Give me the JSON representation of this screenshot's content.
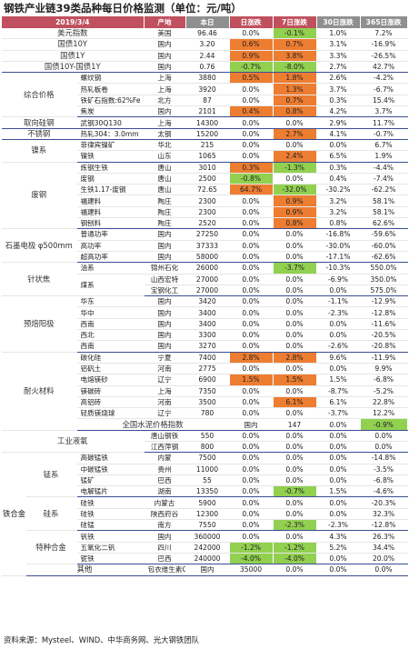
{
  "title": "钢铁产业链39类品种每日价格监测（单位：元/吨）",
  "header": {
    "date": "2019/3/4",
    "region": "产地",
    "price": "本日",
    "d1": "日涨跌",
    "d7": "7日涨跌",
    "d30": "30日涨跌",
    "d365": "365日涨跌"
  },
  "highlight_colors": {
    "orange": "#ed7d31",
    "green": "#92d050",
    "header": "#c0505e"
  },
  "rows": [
    {
      "c1": "美元指数",
      "c2": "",
      "c3": "美国",
      "price": "96.46",
      "d1": "0.0%",
      "d7": "-0.1%",
      "d30": "1.0%",
      "d365": "7.2%",
      "h7": "green"
    },
    {
      "c1": "国债10Y",
      "c2": "",
      "c3": "国内",
      "price": "3.20",
      "d1": "0.6%",
      "d7": "0.7%",
      "d30": "3.1%",
      "d365": "-16.9%",
      "h1": "orange",
      "h7": "orange"
    },
    {
      "c1": "国债1Y",
      "c2": "",
      "c3": "国内",
      "price": "2.44",
      "d1": "0.9%",
      "d7": "3.8%",
      "d30": "3.3%",
      "d365": "-26.5%",
      "h1": "orange",
      "h7": "orange"
    },
    {
      "c1": "国债10Y-国债1Y",
      "c2": "",
      "c3": "国内",
      "price": "0.76",
      "d1": "-0.7%",
      "d7": "-8.0%",
      "d30": "2.7%",
      "d365": "42.7%",
      "h1": "green",
      "h7": "green",
      "end": true
    },
    {
      "c1": "综合价格",
      "c2": "螺纹钢",
      "c3": "上海",
      "price": "3880",
      "d1": "0.5%",
      "d7": "1.8%",
      "d30": "2.6%",
      "d365": "-4.2%",
      "h1": "orange",
      "h7": "orange",
      "span": 4
    },
    {
      "c2": "热轧板卷",
      "c3": "上海",
      "price": "3920",
      "d1": "0.0%",
      "d7": "1.3%",
      "d30": "3.7%",
      "d365": "-6.7%",
      "h7": "orange"
    },
    {
      "c2": "铁矿石指数:62%Fe",
      "c3": "北方",
      "price": "87",
      "d1": "0.0%",
      "d7": "0.7%",
      "d30": "0.3%",
      "d365": "15.4%",
      "h7": "orange"
    },
    {
      "c2": "焦炭",
      "c3": "国内",
      "price": "2101",
      "d1": "0.4%",
      "d7": "0.8%",
      "d30": "4.2%",
      "d365": "3.7%",
      "h1": "orange",
      "h7": "orange",
      "end": true
    },
    {
      "c1": "取向硅钢",
      "c2": "武钢30Q130",
      "c3": "上海",
      "price": "14300",
      "d1": "0.0%",
      "d7": "0.0%",
      "d30": "2.9%",
      "d365": "11.7%",
      "end": true
    },
    {
      "c1": "不锈钢",
      "c2": "热轧304：3.0mm",
      "c3": "太钢",
      "price": "15200",
      "d1": "0.0%",
      "d7": "2.7%",
      "d30": "4.1%",
      "d365": "-0.7%",
      "h7": "orange",
      "end": true
    },
    {
      "c1": "镍系",
      "c2": "菲律宾镍矿",
      "c3": "华北",
      "price": "215",
      "d1": "0.0%",
      "d7": "0.0%",
      "d30": "0.0%",
      "d365": "6.7%",
      "span": 2
    },
    {
      "c2": "镍铁",
      "c3": "山东",
      "price": "1065",
      "d1": "0.0%",
      "d7": "2.4%",
      "d30": "6.5%",
      "d365": "1.9%",
      "h7": "orange",
      "end": true
    },
    {
      "c1": "废钢",
      "c2": "炼钢生铁",
      "c3": "唐山",
      "price": "3010",
      "d1": "0.3%",
      "d7": "-1.3%",
      "d30": "0.3%",
      "d365": "-4.4%",
      "h1": "orange",
      "h7": "green",
      "span": 6
    },
    {
      "c2": "废钢",
      "c3": "唐山",
      "price": "2500",
      "d1": "-0.8%",
      "d7": "0.0%",
      "d30": "0.4%",
      "d365": "-7.4%",
      "h1": "green"
    },
    {
      "c2": "生铁1.17-废钢",
      "c3": "唐山",
      "price": "72.65",
      "d1": "64.7%",
      "d7": "-32.0%",
      "d30": "-30.2%",
      "d365": "-62.2%",
      "h1": "orange",
      "h7": "green"
    },
    {
      "c2": "福建料",
      "c3": "陶庄",
      "price": "2300",
      "d1": "0.0%",
      "d7": "0.9%",
      "d30": "3.2%",
      "d365": "58.1%",
      "h7": "orange"
    },
    {
      "c2": "福建料",
      "c3": "陶庄",
      "price": "2300",
      "d1": "0.0%",
      "d7": "0.9%",
      "d30": "3.2%",
      "d365": "58.1%",
      "h7": "orange"
    },
    {
      "c2": "钢刨料",
      "c3": "陶庄",
      "price": "2520",
      "d1": "0.0%",
      "d7": "0.8%",
      "d30": "0.8%",
      "d365": "62.6%",
      "h7": "orange",
      "end": true
    },
    {
      "c1": "石墨电极 φ500mm",
      "c2": "普通功率",
      "c3": "国内",
      "price": "27250",
      "d1": "0.0%",
      "d7": "0.0%",
      "d30": "-16.8%",
      "d365": "-59.6%",
      "span": 3
    },
    {
      "c2": "高功率",
      "c3": "国内",
      "price": "37333",
      "d1": "0.0%",
      "d7": "0.0%",
      "d30": "-30.0%",
      "d365": "-60.0%"
    },
    {
      "c2": "超高功率",
      "c3": "国内",
      "price": "58000",
      "d1": "0.0%",
      "d7": "0.0%",
      "d30": "-17.1%",
      "d365": "-62.6%",
      "end": true
    },
    {
      "c1": "针状焦",
      "c2": "油系",
      "c3": "锦州石化",
      "price": "26000",
      "d1": "0.0%",
      "d7": "-3.7%",
      "d30": "-10.3%",
      "d365": "550.0%",
      "h7": "green",
      "span": 3
    },
    {
      "c2": "煤系",
      "c3": "山西宏特",
      "price": "27000",
      "d1": "0.0%",
      "d7": "0.0%",
      "d30": "-6.9%",
      "d365": "350.0%",
      "span2": 2
    },
    {
      "c3": "宝钢化工",
      "price": "27000",
      "d1": "0.0%",
      "d7": "0.0%",
      "d30": "0.0%",
      "d365": "575.0%",
      "end": true
    },
    {
      "c1": "预焙阳极",
      "c2": "华东",
      "c3": "国内",
      "price": "3420",
      "d1": "0.0%",
      "d7": "0.0%",
      "d30": "-1.1%",
      "d365": "-12.9%",
      "span": 5
    },
    {
      "c2": "华中",
      "c3": "国内",
      "price": "3400",
      "d1": "0.0%",
      "d7": "0.0%",
      "d30": "-2.3%",
      "d365": "-12.8%"
    },
    {
      "c2": "西南",
      "c3": "国内",
      "price": "3400",
      "d1": "0.0%",
      "d7": "0.0%",
      "d30": "0.0%",
      "d365": "-11.6%"
    },
    {
      "c2": "西北",
      "c3": "国内",
      "price": "3300",
      "d1": "0.0%",
      "d7": "0.0%",
      "d30": "0.0%",
      "d365": "-20.5%"
    },
    {
      "c2": "西南",
      "c3": "国内",
      "price": "3270",
      "d1": "0.0%",
      "d7": "0.0%",
      "d30": "-2.6%",
      "d365": "-20.8%",
      "end": true
    },
    {
      "c1": "耐火材料",
      "c2": "碳化硅",
      "c3": "宁夏",
      "price": "7400",
      "d1": "2.8%",
      "d7": "2.8%",
      "d30": "9.6%",
      "d365": "-11.9%",
      "h1": "orange",
      "h7": "orange",
      "span": 7
    },
    {
      "c2": "铝矾土",
      "c3": "河南",
      "price": "2775",
      "d1": "0.0%",
      "d7": "0.0%",
      "d30": "0.0%",
      "d365": "9.9%"
    },
    {
      "c2": "电熔镁砂",
      "c3": "辽宁",
      "price": "6900",
      "d1": "1.5%",
      "d7": "1.5%",
      "d30": "1.5%",
      "d365": "-6.8%",
      "h1": "orange",
      "h7": "orange"
    },
    {
      "c2": "镁碳砖",
      "c3": "上海",
      "price": "7350",
      "d1": "0.0%",
      "d7": "0.0%",
      "d30": "-8.7%",
      "d365": "-5.2%"
    },
    {
      "c2": "高铝砖",
      "c3": "河南",
      "price": "3500",
      "d1": "0.0%",
      "d7": "6.1%",
      "d30": "6.1%",
      "d365": "22.8%",
      "h7": "orange"
    },
    {
      "c2": "轻质镁烧球",
      "c3": "辽宁",
      "price": "780",
      "d1": "0.0%",
      "d7": "0.0%",
      "d30": "-3.7%",
      "d365": "12.2%"
    },
    {
      "c1": "全国水泥价格指数",
      "c2": "",
      "c3": "国内",
      "price": "147",
      "d1": "0.0%",
      "d7": "-0.9%",
      "d30": "-3.0%",
      "d365": "10.0%",
      "h7": "green",
      "h30": "green",
      "h365": "orange",
      "end": true
    },
    {
      "c1": "工业液氧",
      "c2": "",
      "c3": "唐山钢铁",
      "price": "550",
      "d1": "0.0%",
      "d7": "0.0%",
      "d30": "0.0%",
      "d365": "0.0%",
      "span": 2
    },
    {
      "c3": "江西萍钢",
      "price": "800",
      "d1": "0.0%",
      "d7": "0.0%",
      "d30": "0.0%",
      "d365": "0.0%",
      "end": true
    },
    {
      "c0": "铁合金",
      "c1": "锰系",
      "c2": "高碳锰铁",
      "c3": "内蒙",
      "price": "7500",
      "d1": "0.0%",
      "d7": "0.0%",
      "d30": "0.0%",
      "d365": "-14.8%",
      "span0": 13,
      "span": 4
    },
    {
      "c2": "中碳锰铁",
      "c3": "贵州",
      "price": "11000",
      "d1": "0.0%",
      "d7": "0.0%",
      "d30": "0.0%",
      "d365": "-3.5%"
    },
    {
      "c2": "锰矿",
      "c3": "巴西",
      "price": "55",
      "d1": "0.0%",
      "d7": "0.0%",
      "d30": "0.0%",
      "d365": "-6.8%"
    },
    {
      "c2": "电解锰片",
      "c3": "湖南",
      "price": "13350",
      "d1": "0.0%",
      "d7": "-0.7%",
      "d30": "1.5%",
      "d365": "-4.6%",
      "h7": "green",
      "end": true
    },
    {
      "c1": "硅系",
      "c2": "硅铁",
      "c3": "内蒙古",
      "price": "5900",
      "d1": "0.0%",
      "d7": "0.0%",
      "d30": "0.0%",
      "d365": "-20.3%",
      "span": 3
    },
    {
      "c2": "硅铁",
      "c3": "陕西府谷",
      "price": "12300",
      "d1": "0.0%",
      "d7": "0.0%",
      "d30": "0.0%",
      "d365": "32.3%"
    },
    {
      "c2": "硅锰",
      "c3": "南方",
      "price": "7550",
      "d1": "0.0%",
      "d7": "-2.3%",
      "d30": "-2.3%",
      "d365": "-12.8%",
      "h7": "green",
      "end": true
    },
    {
      "c1": "特种合金",
      "c2": "钒铁",
      "c3": "国内",
      "price": "360000",
      "d1": "0.0%",
      "d7": "0.0%",
      "d30": "4.3%",
      "d365": "26.3%",
      "span": 3
    },
    {
      "c2": "五氧化二钒",
      "c3": "四川",
      "price": "242000",
      "d1": "-1.2%",
      "d7": "-1.2%",
      "d30": "5.2%",
      "d365": "34.4%",
      "h1": "green",
      "h7": "green"
    },
    {
      "c2": "铌铁",
      "c3": "巴西",
      "price": "240000",
      "d1": "-4.0%",
      "d7": "-4.0%",
      "d30": "0.0%",
      "d365": "20.0%",
      "h1": "green",
      "h7": "green",
      "end": true
    },
    {
      "c0": "其他",
      "c2": "包衣维生素C:97%",
      "c3": "国内",
      "price": "35000",
      "d1": "0.0%",
      "d7": "0.0%",
      "d30": "0.0%",
      "d365": "-43.2%",
      "end": true
    }
  ],
  "footer": "资料来源：Mysteel、WIND、中华商务网、光大钢铁团队"
}
